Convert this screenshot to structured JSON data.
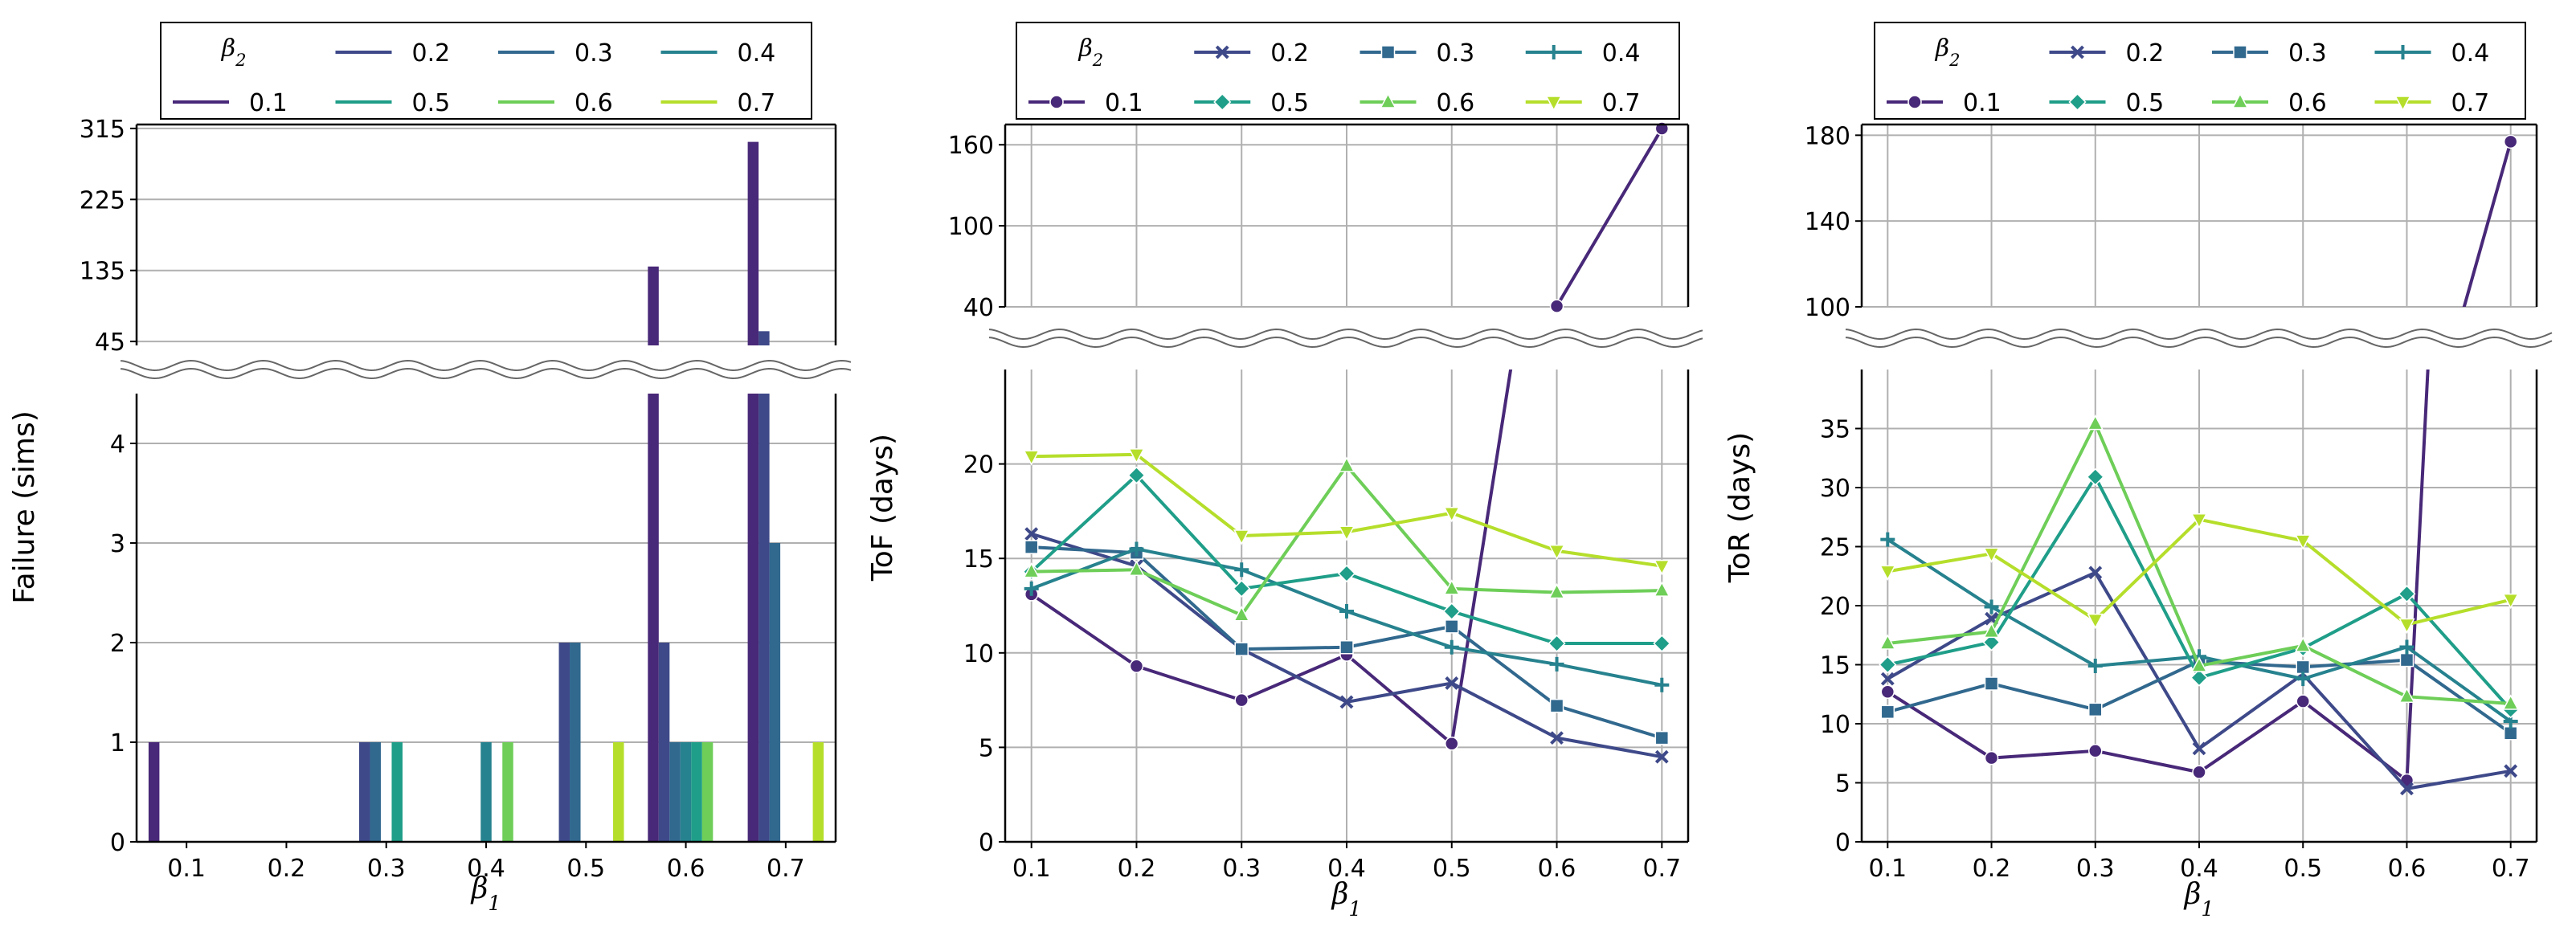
{
  "colors": {
    "0.1": "#482878",
    "0.2": "#3e4989",
    "0.3": "#31688e",
    "0.4": "#26828e",
    "0.5": "#1f9e89",
    "0.6": "#6ece58",
    "0.7": "#b5de2b"
  },
  "chart_data": [
    {
      "type": "bar",
      "title": "",
      "xlabel": "β1",
      "ylabel": "Failure (sims)",
      "x_ticks": [
        "0.1",
        "0.2",
        "0.3",
        "0.4",
        "0.5",
        "0.6",
        "0.7"
      ],
      "xlim": [
        0.05,
        0.75
      ],
      "broken_axis": {
        "lower_ylim": [
          0,
          4.5
        ],
        "upper_ylim": [
          40,
          320
        ]
      },
      "y_ticks_lower": [
        "0",
        "1",
        "2",
        "3",
        "4"
      ],
      "y_ticks_upper": [
        "45",
        "135",
        "225",
        "315"
      ],
      "legend": {
        "title": "β2",
        "entries": [
          "0.1",
          "0.2",
          "0.3",
          "0.4",
          "0.5",
          "0.6",
          "0.7"
        ],
        "marker": "line"
      },
      "categories": [
        "0.1",
        "0.2",
        "0.3",
        "0.4",
        "0.5",
        "0.6",
        "0.7"
      ],
      "series": [
        {
          "name": "0.1",
          "values": [
            1,
            0,
            0,
            0,
            0,
            140,
            298
          ]
        },
        {
          "name": "0.2",
          "values": [
            0,
            0,
            1,
            0,
            2,
            2,
            58
          ]
        },
        {
          "name": "0.3",
          "values": [
            0,
            0,
            1,
            0,
            2,
            1,
            3
          ]
        },
        {
          "name": "0.4",
          "values": [
            0,
            0,
            0,
            1,
            0,
            1,
            0
          ]
        },
        {
          "name": "0.5",
          "values": [
            0,
            0,
            1,
            0,
            0,
            1,
            0
          ]
        },
        {
          "name": "0.6",
          "values": [
            0,
            0,
            0,
            1,
            0,
            1,
            0
          ]
        },
        {
          "name": "0.7",
          "values": [
            0,
            0,
            0,
            0,
            1,
            0,
            1
          ]
        }
      ]
    },
    {
      "type": "line",
      "title": "",
      "xlabel": "β1",
      "ylabel": "ToF (days)",
      "x": [
        0.1,
        0.2,
        0.3,
        0.4,
        0.5,
        0.6,
        0.7
      ],
      "x_ticks": [
        "0.1",
        "0.2",
        "0.3",
        "0.4",
        "0.5",
        "0.6",
        "0.7"
      ],
      "xlim": [
        0.075,
        0.725
      ],
      "broken_axis": {
        "lower_ylim": [
          0,
          25
        ],
        "upper_ylim": [
          40,
          175
        ]
      },
      "y_ticks_lower": [
        "0",
        "5",
        "10",
        "15",
        "20"
      ],
      "y_ticks_upper": [
        "40",
        "100",
        "160"
      ],
      "legend": {
        "title": "β2",
        "entries": [
          "0.1",
          "0.2",
          "0.3",
          "0.4",
          "0.5",
          "0.6",
          "0.7"
        ],
        "marker": "line+marker"
      },
      "series": [
        {
          "name": "0.1",
          "marker": "circle",
          "values": [
            13.1,
            9.3,
            7.5,
            9.9,
            5.2,
            40.5,
            172
          ]
        },
        {
          "name": "0.2",
          "marker": "x",
          "values": [
            16.3,
            14.6,
            10.2,
            7.4,
            8.4,
            5.5,
            4.5
          ]
        },
        {
          "name": "0.3",
          "marker": "square",
          "values": [
            15.6,
            15.3,
            10.2,
            10.3,
            11.4,
            7.2,
            5.5
          ]
        },
        {
          "name": "0.4",
          "marker": "plus",
          "values": [
            13.4,
            15.5,
            14.4,
            12.2,
            10.3,
            9.4,
            8.3
          ]
        },
        {
          "name": "0.5",
          "marker": "diamond",
          "values": [
            14.3,
            19.4,
            13.4,
            14.2,
            12.2,
            10.5,
            10.5
          ]
        },
        {
          "name": "0.6",
          "marker": "triangle-up",
          "values": [
            14.3,
            14.4,
            12.0,
            19.9,
            13.4,
            13.2,
            13.3
          ]
        },
        {
          "name": "0.7",
          "marker": "triangle-down",
          "values": [
            20.4,
            20.5,
            16.2,
            16.4,
            17.4,
            15.4,
            14.6
          ]
        }
      ]
    },
    {
      "type": "line",
      "title": "",
      "xlabel": "β1",
      "ylabel": "ToR (days)",
      "x": [
        0.1,
        0.2,
        0.3,
        0.4,
        0.5,
        0.6,
        0.7
      ],
      "x_ticks": [
        "0.1",
        "0.2",
        "0.3",
        "0.4",
        "0.5",
        "0.6",
        "0.7"
      ],
      "xlim": [
        0.075,
        0.725
      ],
      "broken_axis": {
        "lower_ylim": [
          0,
          40
        ],
        "upper_ylim": [
          100,
          185
        ]
      },
      "y_ticks_lower": [
        "0",
        "5",
        "10",
        "15",
        "20",
        "25",
        "30",
        "35"
      ],
      "y_ticks_upper": [
        "100",
        "140",
        "180"
      ],
      "legend": {
        "title": "β2",
        "entries": [
          "0.1",
          "0.2",
          "0.3",
          "0.4",
          "0.5",
          "0.6",
          "0.7"
        ],
        "marker": "line+marker"
      },
      "series": [
        {
          "name": "0.1",
          "marker": "circle",
          "values": [
            12.7,
            7.1,
            7.7,
            5.9,
            11.9,
            5.2,
            177
          ]
        },
        {
          "name": "0.2",
          "marker": "x",
          "values": [
            13.8,
            18.9,
            22.8,
            7.9,
            14.2,
            4.5,
            6.0
          ]
        },
        {
          "name": "0.3",
          "marker": "square",
          "values": [
            11.0,
            13.4,
            11.2,
            15.3,
            14.8,
            15.4,
            9.2
          ]
        },
        {
          "name": "0.4",
          "marker": "plus",
          "values": [
            25.6,
            19.9,
            14.9,
            15.7,
            13.8,
            16.5,
            10.2
          ]
        },
        {
          "name": "0.5",
          "marker": "diamond",
          "values": [
            15.0,
            16.9,
            30.9,
            13.9,
            16.4,
            21.0,
            11.2
          ]
        },
        {
          "name": "0.6",
          "marker": "triangle-up",
          "values": [
            16.8,
            17.8,
            35.4,
            14.9,
            16.6,
            12.3,
            11.7
          ]
        },
        {
          "name": "0.7",
          "marker": "triangle-down",
          "values": [
            22.9,
            24.4,
            18.8,
            27.3,
            25.5,
            18.4,
            20.5
          ]
        }
      ]
    }
  ]
}
